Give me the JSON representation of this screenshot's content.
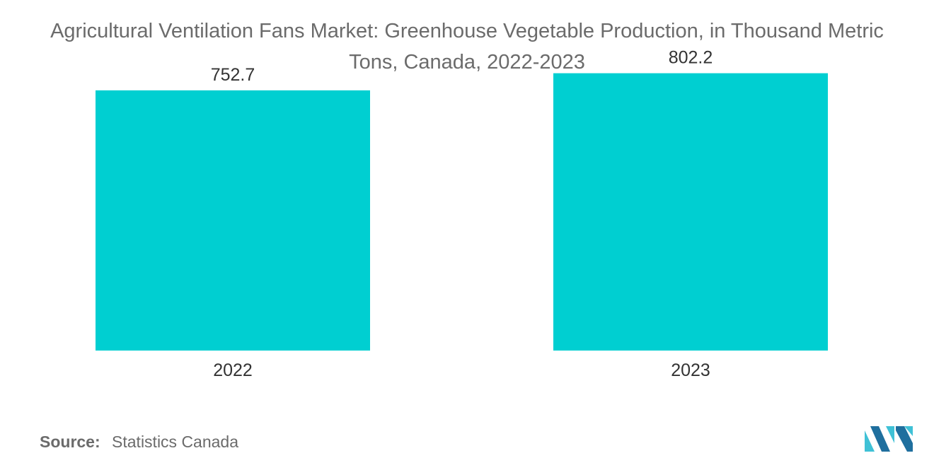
{
  "chart_data": {
    "type": "bar",
    "title_lines": [
      "Agricultural Ventilation Fans Market: Greenhouse Vegetable Production, in Thousand Metric",
      "Tons, Canada, 2022-2023"
    ],
    "categories": [
      "2022",
      "2023"
    ],
    "values": [
      752.7,
      802.2
    ],
    "value_labels": [
      "752.7",
      "802.2"
    ],
    "xlabel": "",
    "ylabel": "",
    "ylim": [
      0,
      830
    ],
    "grid": false,
    "legend": "none",
    "bar_color": "#00cfd1"
  },
  "source": {
    "label": "Source:",
    "text": "Statistics Canada"
  },
  "logo": {
    "icon": "mordor-intelligence-logo-icon",
    "color_dark": "#1f6f9e",
    "color_light": "#3fc1d6"
  }
}
